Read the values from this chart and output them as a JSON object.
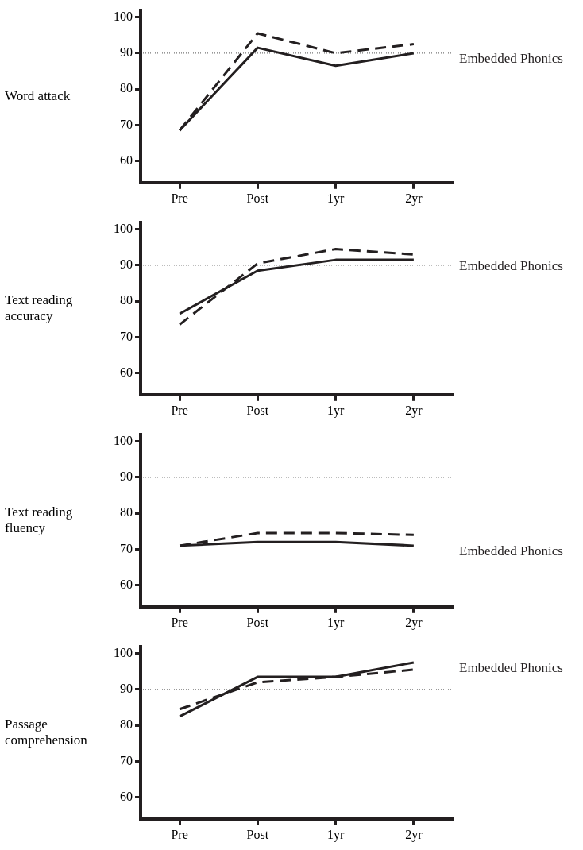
{
  "chart_data": [
    {
      "type": "line",
      "ylabel": "Word attack",
      "categories": [
        "Pre",
        "Post",
        "1yr",
        "2yr"
      ],
      "ylim": [
        54,
        102
      ],
      "yticks": [
        60,
        70,
        80,
        90,
        100
      ],
      "grid": false,
      "legend": false,
      "ref_lines": [
        {
          "axis": "y",
          "value": 90,
          "line_style": "dotted",
          "color": "#555555"
        }
      ],
      "series": [
        {
          "color": "#231f20",
          "line_style": "dashed",
          "values": [
            68.5,
            95.5,
            90,
            92.5
          ]
        },
        {
          "name": "Embedded Phonics",
          "color": "#231f20",
          "line_style": "solid",
          "values": [
            68.5,
            91.5,
            86.5,
            90
          ]
        }
      ]
    },
    {
      "type": "line",
      "ylabel": "Text reading accuracy",
      "categories": [
        "Pre",
        "Post",
        "1yr",
        "2yr"
      ],
      "ylim": [
        54,
        102
      ],
      "yticks": [
        60,
        70,
        80,
        90,
        100
      ],
      "grid": false,
      "legend": false,
      "ref_lines": [
        {
          "axis": "y",
          "value": 90,
          "line_style": "dotted",
          "color": "#555555"
        }
      ],
      "series": [
        {
          "color": "#231f20",
          "line_style": "dashed",
          "values": [
            73.5,
            90.5,
            94.5,
            93
          ]
        },
        {
          "name": "Embedded Phonics",
          "color": "#231f20",
          "line_style": "solid",
          "values": [
            76.5,
            88.5,
            91.5,
            91.5
          ]
        }
      ]
    },
    {
      "type": "line",
      "ylabel": "Text reading fluency",
      "categories": [
        "Pre",
        "Post",
        "1yr",
        "2yr"
      ],
      "ylim": [
        54,
        102
      ],
      "yticks": [
        60,
        70,
        80,
        90,
        100
      ],
      "grid": false,
      "legend": false,
      "ref_lines": [
        {
          "axis": "y",
          "value": 90,
          "line_style": "dotted",
          "color": "#555555"
        }
      ],
      "series": [
        {
          "color": "#231f20",
          "line_style": "dashed",
          "values": [
            71,
            74.5,
            74.5,
            74
          ]
        },
        {
          "name": "Embedded Phonics",
          "color": "#231f20",
          "line_style": "solid",
          "values": [
            71,
            72,
            72,
            71
          ]
        }
      ]
    },
    {
      "type": "line",
      "ylabel": "Passage comprehension",
      "categories": [
        "Pre",
        "Post",
        "1yr",
        "2yr"
      ],
      "ylim": [
        54,
        102
      ],
      "yticks": [
        60,
        70,
        80,
        90,
        100
      ],
      "grid": false,
      "legend": false,
      "ref_lines": [
        {
          "axis": "y",
          "value": 90,
          "line_style": "dotted",
          "color": "#555555"
        }
      ],
      "series": [
        {
          "color": "#231f20",
          "line_style": "dashed",
          "values": [
            84.5,
            92,
            93.5,
            95.5
          ]
        },
        {
          "name": "Embedded Phonics",
          "color": "#231f20",
          "line_style": "solid",
          "values": [
            82.5,
            93.5,
            93.5,
            97.5
          ]
        }
      ]
    }
  ]
}
